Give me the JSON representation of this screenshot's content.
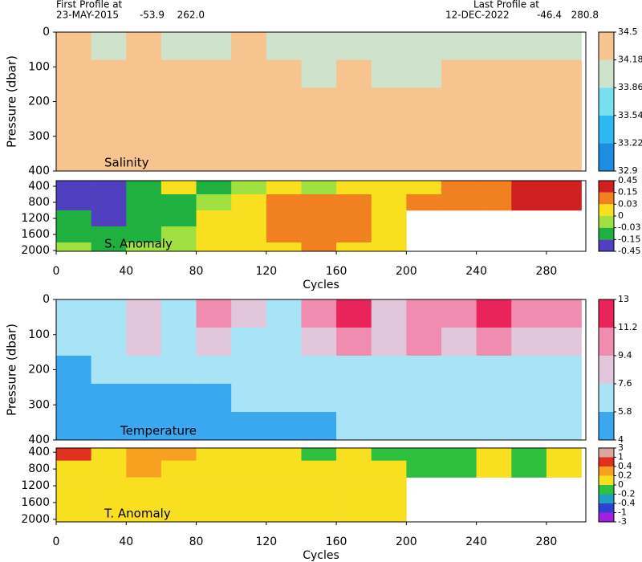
{
  "header": {
    "first_label": "First Profile at",
    "first_date": "23-MAY-2015",
    "first_lat": "-53.9",
    "first_lon": "262.0",
    "last_label": "Last Profile at",
    "last_date": "12-DEC-2022",
    "last_lat": "-46.4",
    "last_lon": "280.8"
  },
  "chart_data": [
    {
      "type": "heatmap",
      "label": "Salinity",
      "ylabel": "Pressure (dbar)",
      "invert_y": true,
      "xlim": [
        0,
        302.5
      ],
      "ylim": [
        0,
        400
      ],
      "yticks": [
        0,
        100,
        200,
        300,
        400
      ],
      "xbins": [
        0,
        20,
        40,
        60,
        80,
        100,
        120,
        140,
        160,
        180,
        200,
        220,
        240,
        260,
        280,
        300
      ],
      "ybins": [
        0,
        80,
        160,
        240,
        320,
        400
      ],
      "z": [
        [
          34.3,
          34.0,
          34.2,
          33.9,
          34.0,
          34.2,
          34.1,
          33.9,
          34.0,
          33.9,
          33.9,
          34.0,
          34.0,
          33.9,
          34.0
        ],
        [
          34.3,
          34.3,
          34.3,
          34.2,
          34.3,
          34.2,
          34.2,
          34.1,
          34.2,
          34.1,
          34.1,
          34.2,
          34.2,
          34.2,
          34.2
        ],
        [
          34.3,
          34.3,
          34.3,
          34.3,
          34.3,
          34.3,
          34.3,
          34.3,
          34.3,
          34.3,
          34.3,
          34.3,
          34.3,
          34.3,
          34.3
        ],
        [
          34.4,
          34.3,
          34.3,
          34.3,
          34.3,
          34.3,
          34.3,
          34.3,
          34.3,
          34.3,
          34.3,
          34.3,
          34.3,
          34.4,
          34.4
        ],
        [
          34.4,
          34.4,
          34.3,
          34.3,
          34.3,
          34.3,
          34.3,
          34.3,
          34.3,
          34.3,
          34.3,
          34.3,
          34.3,
          34.4,
          34.4
        ]
      ],
      "colorbar": {
        "ticks": [
          32.9,
          33.22,
          33.54,
          33.86,
          34.18,
          34.5
        ],
        "colors": [
          "#1c8de0",
          "#2cb9ef",
          "#76dff0",
          "#cfe2cc",
          "#f7c38e"
        ]
      }
    },
    {
      "type": "heatmap",
      "label": "S. Anomaly",
      "xlabel": "Cycles",
      "invert_y": true,
      "xlim": [
        0,
        302.5
      ],
      "ylim": [
        260,
        2020
      ],
      "yticks": [
        400,
        800,
        1200,
        1600,
        2000
      ],
      "xticks": [
        0,
        40,
        80,
        120,
        160,
        200,
        240,
        280
      ],
      "xbins": [
        0,
        20,
        40,
        60,
        80,
        100,
        120,
        140,
        160,
        180,
        200,
        220,
        240,
        260,
        280,
        300
      ],
      "ybins": [
        260,
        600,
        1000,
        1400,
        1800,
        2020
      ],
      "z": [
        [
          -0.2,
          -0.2,
          -0.1,
          0,
          -0.05,
          -0.02,
          0,
          -0.02,
          0,
          0.02,
          0.02,
          0.05,
          0.1,
          0.2,
          0.2
        ],
        [
          -0.2,
          -0.2,
          -0.1,
          -0.05,
          -0.02,
          0.01,
          0.05,
          0.1,
          0.05,
          0.02,
          0.03,
          0.05,
          0.1,
          0.2,
          0.2
        ],
        [
          -0.1,
          -0.2,
          -0.1,
          -0.05,
          0,
          0.02,
          0.1,
          0.1,
          0.05,
          0.02,
          null,
          null,
          null,
          null,
          null
        ],
        [
          -0.05,
          -0.1,
          -0.05,
          -0.02,
          0.01,
          0.02,
          0.05,
          0.05,
          0.03,
          0.02,
          null,
          null,
          null,
          null,
          null
        ],
        [
          -0.02,
          -0.05,
          -0.03,
          -0.01,
          0.01,
          0.01,
          0.02,
          0.03,
          0.02,
          0.01,
          null,
          null,
          null,
          null,
          null
        ]
      ],
      "colorbar": {
        "ticks": [
          -0.45,
          -0.15,
          -0.03,
          0,
          0.03,
          0.15,
          0.45
        ],
        "colors": [
          "#5040c0",
          "#20b040",
          "#a0e040",
          "#f8e020",
          "#f08020",
          "#d02020"
        ]
      }
    },
    {
      "type": "heatmap",
      "label": "Temperature",
      "ylabel": "Pressure (dbar)",
      "invert_y": true,
      "xlim": [
        0,
        302.5
      ],
      "ylim": [
        0,
        400
      ],
      "yticks": [
        0,
        100,
        200,
        300,
        400
      ],
      "xbins": [
        0,
        20,
        40,
        60,
        80,
        100,
        120,
        140,
        160,
        180,
        200,
        220,
        240,
        260,
        280,
        300
      ],
      "ybins": [
        0,
        80,
        160,
        240,
        320,
        400
      ],
      "z": [
        [
          6.5,
          7,
          9,
          7,
          10,
          8,
          7,
          10,
          11.5,
          8,
          11,
          10,
          11.5,
          10,
          10
        ],
        [
          6,
          6.5,
          7.8,
          6.5,
          8,
          7,
          7,
          8,
          9.5,
          8,
          9.5,
          9,
          9.5,
          9,
          9
        ],
        [
          5.5,
          6,
          6.5,
          6,
          6.5,
          6.5,
          6.5,
          7,
          7,
          7,
          7.5,
          7.5,
          7.5,
          7.5,
          7.5
        ],
        [
          5.5,
          5.7,
          5.7,
          5.7,
          5.7,
          6,
          6,
          6,
          6.5,
          6.5,
          6.5,
          6.5,
          6.5,
          6.5,
          7
        ],
        [
          5.5,
          5.6,
          5.6,
          5.6,
          5.6,
          5.7,
          5.7,
          5.7,
          6,
          6,
          6,
          6,
          6,
          6,
          6.5
        ]
      ],
      "colorbar": {
        "ticks": [
          4,
          5.8,
          7.6,
          9.4,
          11.2,
          13
        ],
        "colors": [
          "#3aa8f0",
          "#a8e4f5",
          "#e2c6dc",
          "#f08cb0",
          "#e8245a"
        ]
      }
    },
    {
      "type": "heatmap",
      "label": "T. Anomaly",
      "xlabel": "Cycles",
      "invert_y": true,
      "xlim": [
        0,
        302.5
      ],
      "ylim": [
        300,
        2060
      ],
      "yticks": [
        400,
        800,
        1200,
        1600,
        2000
      ],
      "xticks": [
        0,
        40,
        80,
        120,
        160,
        200,
        240,
        280
      ],
      "xbins": [
        0,
        20,
        40,
        60,
        80,
        100,
        120,
        140,
        160,
        180,
        200,
        220,
        240,
        260,
        280,
        300
      ],
      "ybins": [
        300,
        600,
        1000,
        1400,
        1800,
        2060
      ],
      "z": [
        [
          0.5,
          0.1,
          0.3,
          0.2,
          0.1,
          0,
          0.1,
          -0.1,
          0.05,
          -0.1,
          -0.1,
          -0.1,
          0,
          -0.1,
          0
        ],
        [
          0.1,
          0.15,
          0.3,
          0.1,
          0.05,
          0.05,
          0.1,
          0,
          0.1,
          0,
          -0.1,
          -0.1,
          0,
          -0.1,
          0
        ],
        [
          0.05,
          0.1,
          0.1,
          0.05,
          0.05,
          0.05,
          0.05,
          0.1,
          0.1,
          0,
          null,
          null,
          null,
          null,
          null
        ],
        [
          0.1,
          0.1,
          0.1,
          0.05,
          0.1,
          0.05,
          0.05,
          0.1,
          0.1,
          0.05,
          null,
          null,
          null,
          null,
          null
        ],
        [
          0.1,
          0.1,
          0.1,
          0.05,
          0.1,
          0.05,
          0.05,
          0.1,
          0.1,
          0.05,
          null,
          null,
          null,
          null,
          null
        ]
      ],
      "colorbar": {
        "ticks": [
          -3,
          -1,
          -0.4,
          -0.2,
          0,
          0.2,
          0.4,
          1,
          3
        ],
        "colors": [
          "#a020e0",
          "#3040d0",
          "#20a0c0",
          "#30c040",
          "#f8e020",
          "#f8a020",
          "#e03020",
          "#d8a8a0"
        ]
      }
    }
  ]
}
